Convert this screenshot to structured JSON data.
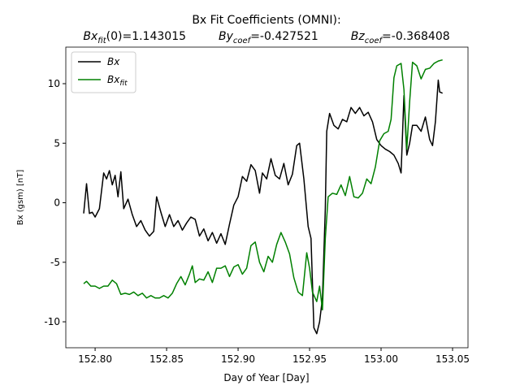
{
  "chart_data": {
    "type": "line",
    "title": "Bx Fit Coefficients (OMNI):",
    "coefficients": [
      {
        "base": "Bx",
        "sub": "fit",
        "rest": "(0)=1.143015"
      },
      {
        "base": "By",
        "sub": "coef",
        "rest": "=-0.427521"
      },
      {
        "base": "Bz",
        "sub": "coef",
        "rest": "=-0.368408"
      }
    ],
    "x_label": "Day of Year [Day]",
    "y_label": "Bx (gsm) [nT]",
    "xlim": [
      152.7795,
      153.0608
    ],
    "ylim": [
      -12.18,
      13.07
    ],
    "xticks": [
      {
        "value": 152.8,
        "label": "152.80"
      },
      {
        "value": 152.85,
        "label": "152.85"
      },
      {
        "value": 152.9,
        "label": "152.90"
      },
      {
        "value": 152.95,
        "label": "152.95"
      },
      {
        "value": 153.0,
        "label": "153.00"
      },
      {
        "value": 153.05,
        "label": "153.05"
      }
    ],
    "yticks": [
      -10,
      -5,
      0,
      5,
      10
    ],
    "legend": "upper left",
    "series": [
      {
        "name": "Bx",
        "color": "#000000",
        "x": [
          152.792,
          152.794,
          152.796,
          152.798,
          152.8,
          152.803,
          152.806,
          152.808,
          152.81,
          152.812,
          152.814,
          152.816,
          152.818,
          152.82,
          152.823,
          152.826,
          152.829,
          152.832,
          152.835,
          152.838,
          152.841,
          152.843,
          152.846,
          152.849,
          152.852,
          152.855,
          152.858,
          152.861,
          152.864,
          152.867,
          152.87,
          152.873,
          152.876,
          152.879,
          152.882,
          152.885,
          152.888,
          152.891,
          152.894,
          152.897,
          152.9,
          152.903,
          152.906,
          152.909,
          152.912,
          152.915,
          152.917,
          152.92,
          152.923,
          152.926,
          152.929,
          152.932,
          152.935,
          152.938,
          152.941,
          152.943,
          152.946,
          152.949,
          152.951,
          152.953,
          152.955,
          152.957,
          152.959,
          152.961,
          152.962,
          152.964,
          152.967,
          152.97,
          152.973,
          152.976,
          152.979,
          152.982,
          152.985,
          152.988,
          152.991,
          152.994,
          152.997,
          153.0,
          153.003,
          153.006,
          153.009,
          153.012,
          153.014,
          153.016,
          153.018,
          153.02,
          153.022,
          153.025,
          153.028,
          153.031,
          153.034,
          153.036,
          153.038,
          153.04,
          153.041,
          153.043
        ],
        "values": [
          -0.9,
          1.6,
          -0.9,
          -0.8,
          -1.2,
          -0.5,
          2.5,
          2.0,
          2.7,
          1.5,
          2.3,
          0.5,
          2.6,
          -0.5,
          0.3,
          -1.0,
          -2.0,
          -1.5,
          -2.3,
          -2.8,
          -2.4,
          0.5,
          -0.8,
          -2.0,
          -1.0,
          -2.0,
          -1.5,
          -2.3,
          -1.7,
          -1.2,
          -1.4,
          -2.8,
          -2.2,
          -3.2,
          -2.5,
          -3.4,
          -2.6,
          -3.5,
          -1.8,
          -0.2,
          0.5,
          2.2,
          1.8,
          3.2,
          2.7,
          0.8,
          2.5,
          2.0,
          3.7,
          2.3,
          2.0,
          3.3,
          1.5,
          2.4,
          4.8,
          5.0,
          2.0,
          -2.0,
          -3.0,
          -10.5,
          -11.0,
          -10.0,
          -8.0,
          -0.5,
          6.0,
          7.5,
          6.5,
          6.2,
          7.0,
          6.8,
          8.0,
          7.5,
          8.0,
          7.3,
          7.6,
          6.8,
          5.3,
          4.8,
          4.5,
          4.3,
          4.0,
          3.3,
          2.5,
          9.0,
          4.0,
          5.0,
          6.5,
          6.5,
          6.0,
          7.2,
          5.3,
          4.8,
          6.8,
          10.3,
          9.3,
          9.2
        ]
      },
      {
        "name": "Bx",
        "sub": "fit",
        "color": "#008000",
        "x": [
          152.792,
          152.794,
          152.797,
          152.8,
          152.803,
          152.806,
          152.809,
          152.812,
          152.815,
          152.818,
          152.821,
          152.824,
          152.827,
          152.83,
          152.833,
          152.836,
          152.839,
          152.842,
          152.845,
          152.848,
          152.851,
          152.854,
          152.857,
          152.86,
          152.863,
          152.866,
          152.868,
          152.87,
          152.873,
          152.876,
          152.879,
          152.882,
          152.885,
          152.888,
          152.891,
          152.894,
          152.897,
          152.9,
          152.903,
          152.906,
          152.909,
          152.912,
          152.915,
          152.918,
          152.921,
          152.924,
          152.927,
          152.93,
          152.933,
          152.936,
          152.939,
          152.942,
          152.945,
          152.948,
          152.95,
          152.952,
          152.955,
          152.957,
          152.959,
          152.961,
          152.963,
          152.966,
          152.969,
          152.972,
          152.975,
          152.978,
          152.981,
          152.984,
          152.987,
          152.99,
          152.993,
          152.996,
          152.999,
          153.002,
          153.005,
          153.007,
          153.009,
          153.011,
          153.014,
          153.016,
          153.018,
          153.02,
          153.022,
          153.025,
          153.028,
          153.031,
          153.034,
          153.037,
          153.04,
          153.043
        ],
        "values": [
          -6.8,
          -6.6,
          -7.0,
          -7.0,
          -7.2,
          -7.0,
          -7.0,
          -6.5,
          -6.8,
          -7.7,
          -7.6,
          -7.7,
          -7.5,
          -7.8,
          -7.6,
          -8.0,
          -7.8,
          -8.0,
          -8.0,
          -7.8,
          -8.0,
          -7.6,
          -6.8,
          -6.2,
          -6.9,
          -6.0,
          -5.3,
          -6.7,
          -6.4,
          -6.5,
          -5.8,
          -6.7,
          -5.5,
          -5.5,
          -5.3,
          -6.2,
          -5.4,
          -5.2,
          -6.0,
          -5.5,
          -3.6,
          -3.3,
          -5.0,
          -5.8,
          -4.5,
          -5.0,
          -3.5,
          -2.5,
          -3.3,
          -4.3,
          -6.3,
          -7.5,
          -7.8,
          -4.2,
          -5.5,
          -7.5,
          -8.3,
          -7.0,
          -9.0,
          -3.0,
          0.5,
          0.8,
          0.7,
          1.5,
          0.6,
          2.2,
          0.5,
          0.4,
          0.8,
          2.0,
          1.6,
          3.0,
          5.2,
          5.8,
          6.0,
          7.0,
          10.5,
          11.5,
          11.7,
          9.5,
          4.5,
          8.5,
          11.8,
          11.5,
          10.4,
          11.2,
          11.3,
          11.7,
          11.9,
          12.0
        ]
      }
    ]
  }
}
